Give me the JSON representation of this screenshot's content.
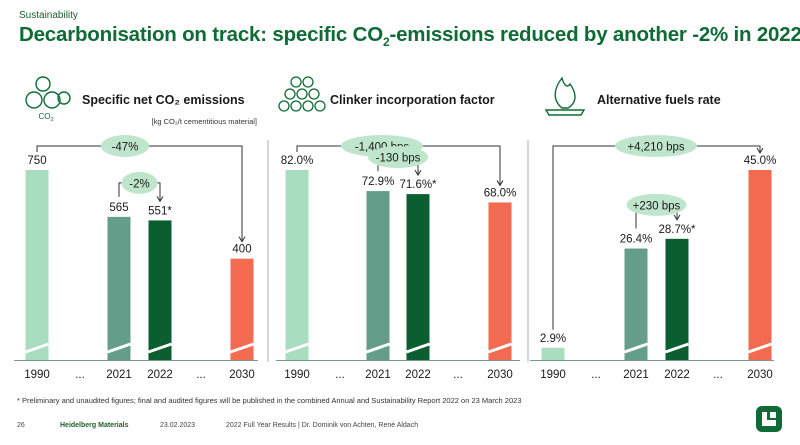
{
  "header": {
    "section": "Sustainability",
    "title_part1": "Decarbonisation on track: specific CO",
    "title_sub": "2",
    "title_part2": "-emissions reduced by another -2% in 2022"
  },
  "colors": {
    "baseline": "#a8ddc0",
    "prior_year": "#649e8a",
    "current_year": "#0b5e30",
    "target": "#f26a50",
    "bubble": "#bfe6cc",
    "title": "#0f6b35"
  },
  "chart_data": [
    {
      "type": "bar",
      "title": "Specific net CO₂ emissions",
      "icon": "co2-molecule-icon",
      "unit_note": "[kg CO₂/t cementitious material]",
      "categories": [
        "1990",
        "...",
        "2021",
        "2022",
        "...",
        "2030"
      ],
      "values": [
        750,
        null,
        565,
        551,
        null,
        400
      ],
      "labels": [
        "750",
        "",
        "565",
        "551*",
        "",
        "400"
      ],
      "annotations": [
        {
          "text": "-47%",
          "from": "1990",
          "to": "2030"
        },
        {
          "text": "-2%",
          "from": "2021",
          "to": "2022"
        }
      ],
      "grid": false
    },
    {
      "type": "bar",
      "title": "Clinker incorporation factor",
      "icon": "clinker-particles-icon",
      "categories": [
        "1990",
        "...",
        "2021",
        "2022",
        "...",
        "2030"
      ],
      "values": [
        82.0,
        null,
        72.9,
        71.6,
        null,
        68.0
      ],
      "labels": [
        "82.0%",
        "",
        "72.9%",
        "71.6%*",
        "",
        "68.0%"
      ],
      "annotations": [
        {
          "text": "-1,400 bps",
          "from": "1990",
          "to": "2030"
        },
        {
          "text": "-130 bps",
          "from": "2021",
          "to": "2022"
        }
      ],
      "grid": false
    },
    {
      "type": "bar",
      "title": "Alternative fuels rate",
      "icon": "flame-icon",
      "categories": [
        "1990",
        "...",
        "2021",
        "2022",
        "...",
        "2030"
      ],
      "values": [
        2.9,
        null,
        26.4,
        28.7,
        null,
        45.0
      ],
      "labels": [
        "2.9%",
        "",
        "26.4%",
        "28.7%*",
        "",
        "45.0%"
      ],
      "annotations": [
        {
          "text": "+4,210 bps",
          "from": "1990",
          "to": "2030"
        },
        {
          "text": "+230 bps",
          "from": "2021",
          "to": "2022"
        }
      ],
      "grid": false
    }
  ],
  "footnote": "* Preliminary and unaudited figures; final and audited figures will be published in the combined Annual and Sustainability Report 2022 on 23 March 2023",
  "footer": {
    "page_number": "26",
    "brand": "Heidelberg Materials",
    "date": "23.02.2023",
    "presentation": "2022 Full Year Results | Dr. Dominik von Achten, René Aldach"
  }
}
